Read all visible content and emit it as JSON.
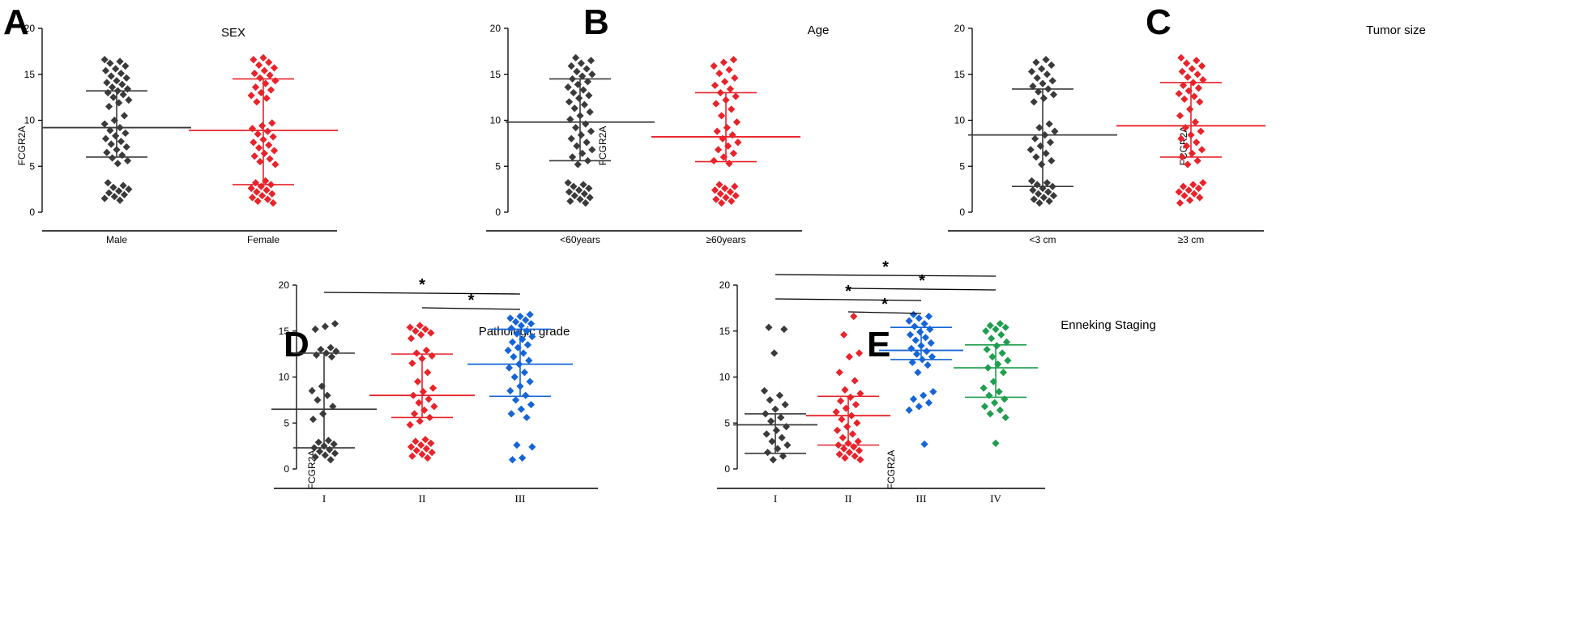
{
  "colors": {
    "black": "#3a3a3a",
    "red": "#e8232a",
    "blue": "#1565d8",
    "green": "#1e9e4e",
    "axis": "#000000"
  },
  "chart_data": [
    {
      "letter": "A",
      "type": "scatter",
      "title": "SEX",
      "ylabel": "FCGR2A",
      "ylim": [
        0,
        20
      ],
      "yticks": [
        0,
        5,
        10,
        15,
        20
      ],
      "categories": [
        "Male",
        "Female"
      ],
      "series": [
        {
          "name": "Male",
          "color": "black",
          "mean": 9.2,
          "upper": 13.2,
          "lower": 6.0,
          "values": [
            16.6,
            16.4,
            16.2,
            15.9,
            15.6,
            15.4,
            15.1,
            14.8,
            14.6,
            14.3,
            14.1,
            13.9,
            13.6,
            13.4,
            13.2,
            13.0,
            12.8,
            12.5,
            12.2,
            11.9,
            11.5,
            10.5,
            10.0,
            9.6,
            9.2,
            8.9,
            8.6,
            8.3,
            8.0,
            7.7,
            7.4,
            7.1,
            6.8,
            6.5,
            6.2,
            5.9,
            5.6,
            5.3,
            3.2,
            2.9,
            2.7,
            2.5,
            2.3,
            2.1,
            1.9,
            1.7,
            1.5,
            1.3
          ]
        },
        {
          "name": "Female",
          "color": "red",
          "mean": 8.9,
          "upper": 14.5,
          "lower": 3.0,
          "values": [
            16.8,
            16.6,
            16.3,
            16.0,
            15.7,
            15.4,
            15.1,
            14.9,
            14.6,
            14.3,
            14.0,
            13.6,
            13.3,
            13.0,
            12.7,
            12.4,
            12.0,
            9.7,
            9.4,
            9.1,
            8.8,
            8.5,
            8.2,
            7.9,
            7.6,
            7.3,
            7.0,
            6.7,
            6.4,
            6.1,
            5.8,
            5.5,
            5.2,
            3.4,
            3.2,
            3.0,
            2.8,
            2.6,
            2.4,
            2.2,
            2.0,
            1.8,
            1.6,
            1.4,
            1.2,
            1.0
          ]
        }
      ],
      "significance": []
    },
    {
      "letter": "B",
      "type": "scatter",
      "title": "Age",
      "ylabel": "FCGR2A",
      "ylim": [
        0,
        20
      ],
      "yticks": [
        0,
        5,
        10,
        15,
        20
      ],
      "categories": [
        "<60years",
        "≥60years"
      ],
      "series": [
        {
          "name": "<60years",
          "color": "black",
          "mean": 9.8,
          "upper": 14.5,
          "lower": 5.6,
          "values": [
            16.8,
            16.5,
            16.2,
            15.9,
            15.6,
            15.3,
            15.0,
            14.8,
            14.5,
            14.2,
            13.9,
            13.6,
            13.3,
            13.0,
            12.7,
            12.4,
            12.0,
            11.7,
            11.3,
            10.9,
            10.5,
            10.1,
            9.6,
            9.2,
            8.8,
            8.4,
            8.0,
            7.6,
            7.2,
            6.8,
            6.4,
            6.0,
            5.6,
            5.2,
            3.2,
            3.0,
            2.8,
            2.6,
            2.4,
            2.2,
            2.0,
            1.8,
            1.6,
            1.4,
            1.2,
            1.0
          ]
        },
        {
          "name": "≥60years",
          "color": "red",
          "mean": 8.2,
          "upper": 13.0,
          "lower": 5.5,
          "values": [
            16.6,
            16.3,
            15.9,
            15.5,
            15.1,
            14.6,
            14.2,
            13.8,
            13.4,
            13.0,
            12.6,
            12.2,
            11.8,
            11.2,
            10.5,
            9.8,
            9.2,
            8.8,
            8.4,
            8.0,
            7.6,
            7.2,
            6.8,
            6.4,
            6.0,
            5.6,
            5.3,
            3.0,
            2.8,
            2.6,
            2.4,
            2.2,
            2.0,
            1.8,
            1.6,
            1.4,
            1.2,
            1.0
          ]
        }
      ],
      "significance": []
    },
    {
      "letter": "C",
      "type": "scatter",
      "title": "Tumor size",
      "ylabel": "FCGR2A",
      "ylim": [
        0,
        20
      ],
      "yticks": [
        0,
        5,
        10,
        15,
        20
      ],
      "categories": [
        "<3 cm",
        "≥3 cm"
      ],
      "series": [
        {
          "name": "<3 cm",
          "color": "black",
          "mean": 8.4,
          "upper": 13.4,
          "lower": 2.8,
          "values": [
            16.6,
            16.3,
            16.0,
            15.6,
            15.3,
            15.0,
            14.6,
            14.3,
            14.0,
            13.7,
            13.4,
            13.1,
            12.8,
            12.4,
            12.0,
            9.6,
            9.2,
            8.8,
            8.4,
            8.0,
            7.6,
            7.2,
            6.8,
            6.4,
            6.0,
            5.6,
            5.2,
            3.4,
            3.2,
            3.0,
            2.8,
            2.6,
            2.4,
            2.2,
            2.0,
            1.8,
            1.6,
            1.4,
            1.2,
            1.0
          ]
        },
        {
          "name": "≥3 cm",
          "color": "red",
          "mean": 9.4,
          "upper": 14.1,
          "lower": 6.0,
          "values": [
            16.8,
            16.5,
            16.2,
            15.9,
            15.6,
            15.3,
            15.0,
            14.7,
            14.4,
            14.1,
            13.8,
            13.5,
            13.2,
            12.9,
            12.6,
            12.3,
            12.0,
            11.2,
            10.5,
            9.8,
            9.2,
            8.8,
            8.4,
            8.0,
            7.6,
            7.2,
            6.8,
            6.4,
            6.0,
            5.6,
            5.2,
            3.2,
            3.0,
            2.8,
            2.6,
            2.4,
            2.2,
            2.0,
            1.8,
            1.6,
            1.3,
            1.0
          ]
        }
      ],
      "significance": []
    },
    {
      "letter": "D",
      "type": "scatter",
      "title": "Pathologic grade",
      "ylabel": "FCGR2A",
      "ylim": [
        0,
        20
      ],
      "yticks": [
        0,
        5,
        10,
        15,
        20
      ],
      "categories": [
        "I",
        "II",
        "III"
      ],
      "series": [
        {
          "name": "I",
          "color": "black",
          "mean": 6.5,
          "upper": 12.6,
          "lower": 2.3,
          "values": [
            15.8,
            15.5,
            15.2,
            13.2,
            13.0,
            12.8,
            12.6,
            12.4,
            12.2,
            9.0,
            8.5,
            8.0,
            7.5,
            6.8,
            6.0,
            5.4,
            3.1,
            2.9,
            2.7,
            2.5,
            2.3,
            2.1,
            1.9,
            1.7,
            1.5,
            1.3,
            1.0
          ]
        },
        {
          "name": "II",
          "color": "red",
          "mean": 8.0,
          "upper": 12.5,
          "lower": 5.6,
          "values": [
            15.6,
            15.4,
            15.2,
            15.0,
            14.8,
            14.6,
            14.2,
            12.9,
            12.6,
            12.3,
            12.0,
            11.5,
            10.5,
            9.5,
            8.8,
            8.4,
            8.0,
            7.6,
            7.2,
            6.8,
            6.4,
            6.0,
            5.6,
            5.2,
            4.8,
            3.2,
            3.0,
            2.8,
            2.6,
            2.4,
            2.2,
            2.0,
            1.8,
            1.6,
            1.4,
            1.2
          ]
        },
        {
          "name": "III",
          "color": "blue",
          "mean": 11.4,
          "upper": 15.2,
          "lower": 7.9,
          "values": [
            16.8,
            16.6,
            16.4,
            16.2,
            16.0,
            15.8,
            15.6,
            15.3,
            15.0,
            14.7,
            14.4,
            14.1,
            13.8,
            13.5,
            13.2,
            12.9,
            12.6,
            12.2,
            11.8,
            11.4,
            11.0,
            10.5,
            10.0,
            9.5,
            9.0,
            8.5,
            8.0,
            7.5,
            7.0,
            6.5,
            6.0,
            5.6,
            2.6,
            2.4,
            1.2,
            1.0
          ]
        }
      ],
      "significance": [
        {
          "from": 0,
          "to": 2,
          "label": "*"
        },
        {
          "from": 1,
          "to": 2,
          "label": "*"
        }
      ]
    },
    {
      "letter": "E",
      "type": "scatter",
      "title": "Enneking Staging",
      "ylabel": "FCGR2A",
      "ylim": [
        0,
        20
      ],
      "yticks": [
        0,
        5,
        10,
        15,
        20
      ],
      "categories": [
        "I",
        "II",
        "III",
        "IV"
      ],
      "series": [
        {
          "name": "I",
          "color": "black",
          "mean": 4.8,
          "upper": 6.0,
          "lower": 1.7,
          "values": [
            15.4,
            15.2,
            12.6,
            8.5,
            8.0,
            7.5,
            7.0,
            6.5,
            6.0,
            5.6,
            5.2,
            4.6,
            4.2,
            3.8,
            3.4,
            3.0,
            2.6,
            2.2,
            1.8,
            1.4,
            1.0
          ]
        },
        {
          "name": "II",
          "color": "red",
          "mean": 5.8,
          "upper": 7.9,
          "lower": 2.6,
          "values": [
            16.6,
            14.6,
            12.6,
            12.2,
            10.5,
            9.6,
            8.6,
            8.2,
            7.8,
            7.4,
            7.0,
            6.6,
            6.2,
            5.8,
            5.4,
            5.0,
            4.6,
            4.2,
            3.8,
            3.4,
            3.0,
            2.8,
            2.6,
            2.4,
            2.2,
            2.0,
            1.8,
            1.6,
            1.4,
            1.2,
            1.0
          ]
        },
        {
          "name": "III",
          "color": "blue",
          "mean": 12.9,
          "upper": 15.4,
          "lower": 11.9,
          "values": [
            16.8,
            16.6,
            16.4,
            16.1,
            15.8,
            15.5,
            15.2,
            14.9,
            14.6,
            14.3,
            14.0,
            13.7,
            13.4,
            13.1,
            12.8,
            12.5,
            12.2,
            11.9,
            11.6,
            11.3,
            10.5,
            8.4,
            8.0,
            7.6,
            7.2,
            6.8,
            6.4,
            2.7
          ]
        },
        {
          "name": "IV",
          "color": "green",
          "mean": 11.0,
          "upper": 13.5,
          "lower": 7.8,
          "values": [
            15.8,
            15.6,
            15.4,
            15.2,
            15.0,
            14.6,
            14.2,
            13.8,
            13.4,
            13.0,
            12.6,
            12.2,
            11.8,
            11.4,
            11.0,
            10.5,
            9.5,
            8.8,
            8.4,
            8.0,
            7.6,
            7.2,
            6.8,
            6.4,
            6.0,
            5.6,
            2.8
          ]
        }
      ],
      "significance": [
        {
          "from": 0,
          "to": 3,
          "label": "*"
        },
        {
          "from": 1,
          "to": 3,
          "label": "*"
        },
        {
          "from": 0,
          "to": 2,
          "label": "*"
        },
        {
          "from": 1,
          "to": 2,
          "label": "*"
        }
      ]
    }
  ]
}
